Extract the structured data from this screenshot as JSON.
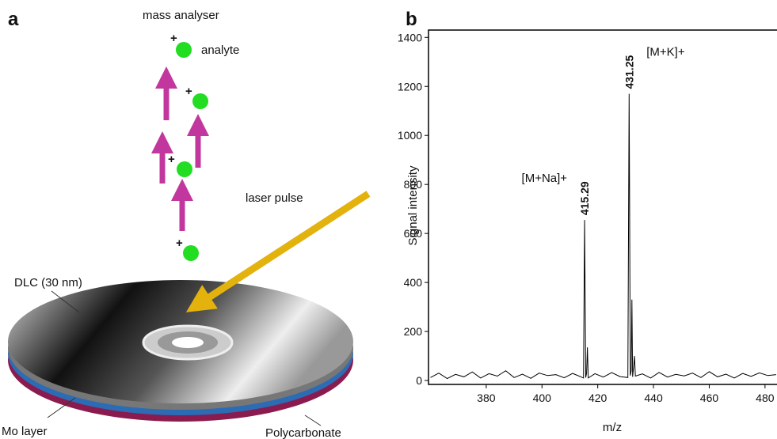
{
  "panel_a": {
    "label": "a",
    "mass_analyser": "mass analyser",
    "analyte": "analyte",
    "charge": "+",
    "laser_pulse": "laser pulse",
    "dlc": "DLC (30 nm)",
    "mo_layer": "Mo layer",
    "polycarbonate": "Polycarbonate"
  },
  "chart_data": {
    "type": "line",
    "label": "b",
    "x_label": "m/z",
    "y_label": "Signal intensity",
    "xlim": [
      359.3,
      484.3
    ],
    "xticks": [
      380,
      400,
      420,
      440,
      460,
      480
    ],
    "ylim": [
      -16,
      1430
    ],
    "yticks": [
      0,
      200,
      400,
      600,
      800,
      1000,
      1200,
      1400
    ],
    "x": [
      360,
      363,
      366,
      369,
      372,
      375,
      378,
      381,
      384,
      387,
      390,
      393,
      396,
      399,
      402,
      405,
      408,
      411,
      414,
      414.9,
      415.29,
      415.7,
      416.0,
      416.3,
      416.6,
      419,
      422,
      425,
      428,
      430.8,
      431.25,
      431.7,
      432.0,
      432.25,
      432.5,
      432.9,
      433.2,
      433.5,
      436,
      439,
      442,
      445,
      448,
      451,
      454,
      457,
      460,
      463,
      466,
      469,
      472,
      475,
      478,
      481,
      484
    ],
    "series": [
      {
        "color": "#000000",
        "values": [
          12,
          30,
          8,
          25,
          15,
          35,
          10,
          28,
          18,
          40,
          12,
          26,
          9,
          30,
          20,
          24,
          11,
          29,
          15,
          10,
          655,
          12,
          30,
          135,
          10,
          28,
          14,
          32,
          16,
          12,
          1170,
          20,
          40,
          330,
          15,
          60,
          100,
          18,
          27,
          10,
          33,
          14,
          25,
          19,
          30,
          12,
          36,
          15,
          26,
          10,
          29,
          17,
          31,
          20,
          24
        ]
      }
    ],
    "annotations": [
      {
        "text": "415.29",
        "x": 415.29,
        "y": 655,
        "ion": "[M+Na]+"
      },
      {
        "text": "431.25",
        "x": 431.25,
        "y": 1170,
        "ion": "[M+K]+"
      }
    ]
  }
}
